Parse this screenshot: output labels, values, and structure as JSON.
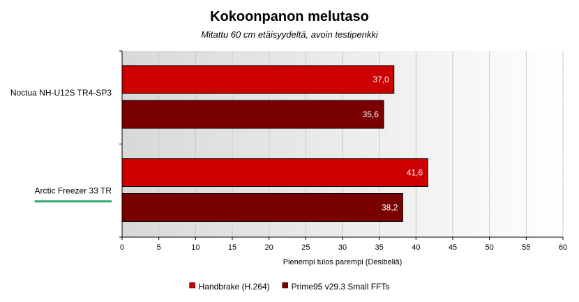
{
  "chart_data": {
    "type": "bar",
    "orientation": "horizontal",
    "title": "Kokoonpanon melutaso",
    "subtitle": "Mitattu 60 cm etäisyydeltä, avoin testipenkki",
    "xlabel": "Pienempi tulos parempi (Desibeliä)",
    "categories": [
      "Noctua NH-U12S TR4-SP3",
      "Arctic Freezer 33 TR"
    ],
    "highlighted_category": "Arctic Freezer 33 TR",
    "highlight_color": "#2eaa6e",
    "series": [
      {
        "name": "Handbrake (H.264)",
        "values": [
          37.0,
          41.6
        ],
        "labels": [
          "37,0",
          "41,6"
        ],
        "color": "#cc0000"
      },
      {
        "name": "Prime95 v29.3 Small FFTs",
        "values": [
          35.6,
          38.2
        ],
        "labels": [
          "35,6",
          "38,2"
        ],
        "color": "#7a0000"
      }
    ],
    "xlim": [
      0,
      60
    ],
    "xticks": [
      0,
      5,
      10,
      15,
      20,
      25,
      30,
      35,
      40,
      45,
      50,
      55,
      60
    ],
    "grid": true,
    "legend": "bottom"
  }
}
